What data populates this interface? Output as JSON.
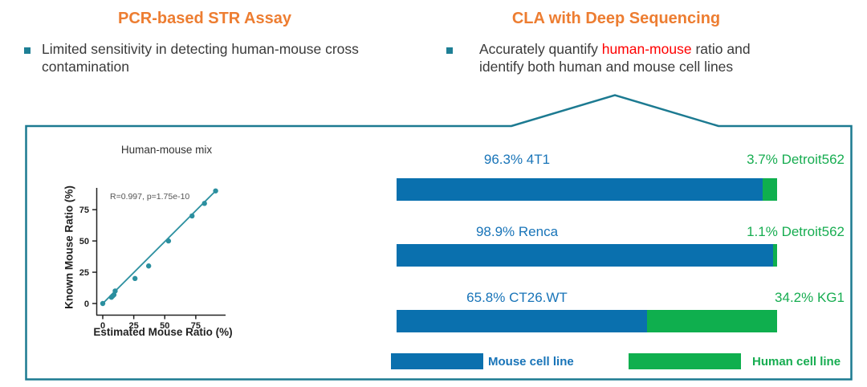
{
  "left_column": {
    "title": "PCR-based STR Assay",
    "bullet_line1": "Limited sensitivity in detecting human-mouse cross",
    "bullet_line2": "contamination"
  },
  "right_column": {
    "title": "CLA with Deep Sequencing",
    "bullet_line1_prefix": "Accurately quantify ",
    "bullet_line1_highlight": "human-mouse",
    "bullet_line1_suffix": " ratio and",
    "bullet_line2": "identify both human and mouse cell lines"
  },
  "colors": {
    "title_orange": "#ED7D31",
    "highlight_red": "#FF0000",
    "bullet_teal": "#1E7F95",
    "box_border_teal": "#1C7A91",
    "scatter_teal": "#2B8F9F",
    "bar_mouse_blue": "#0A70AE",
    "bar_human_green": "#0FAF4E",
    "label_blue": "#1874B8",
    "label_green": "#17AD51"
  },
  "chart_data": [
    {
      "type": "scatter",
      "title": "Human-mouse mix",
      "xlabel": "Estimated Mouse Ratio (%)",
      "ylabel": "Known Mouse Ratio (%)",
      "annotation": "R=0.997, p=1.75e-10",
      "points": [
        [
          0,
          0
        ],
        [
          7,
          5
        ],
        [
          8,
          6
        ],
        [
          9,
          7
        ],
        [
          10,
          10
        ],
        [
          26,
          20
        ],
        [
          37,
          30
        ],
        [
          53,
          50
        ],
        [
          72,
          70
        ],
        [
          82,
          80
        ],
        [
          91,
          90
        ]
      ],
      "fit_line": [
        [
          0,
          0
        ],
        [
          92,
          91
        ]
      ],
      "xticks": [
        0,
        25,
        50,
        75
      ],
      "yticks": [
        0,
        25,
        50,
        75
      ],
      "xlim": [
        0,
        98
      ],
      "ylim": [
        0,
        95
      ],
      "grid": false
    },
    {
      "type": "bar",
      "orientation": "horizontal-stacked",
      "categories": [
        "4T1 + Detroit562",
        "Renca + Detroit562",
        "CT26.WT + KG1"
      ],
      "series": [
        {
          "name": "Mouse cell line",
          "values": [
            96.3,
            98.9,
            65.8
          ]
        },
        {
          "name": "Human cell line",
          "values": [
            3.7,
            1.1,
            34.2
          ]
        }
      ],
      "xlim": [
        0,
        100
      ],
      "legend_position": "bottom"
    }
  ],
  "bars": {
    "rows": [
      {
        "mouse_label": "96.3% 4T1",
        "mouse_pct": 96.3,
        "human_label": "3.7% Detroit562",
        "human_pct": 3.7
      },
      {
        "mouse_label": "98.9% Renca",
        "mouse_pct": 98.9,
        "human_label": "1.1% Detroit562",
        "human_pct": 1.1
      },
      {
        "mouse_label": "65.8% CT26.WT",
        "mouse_pct": 65.8,
        "human_label": "34.2% KG1",
        "human_pct": 34.2
      }
    ],
    "legend": {
      "mouse": "Mouse cell line",
      "human": "Human cell line"
    }
  }
}
